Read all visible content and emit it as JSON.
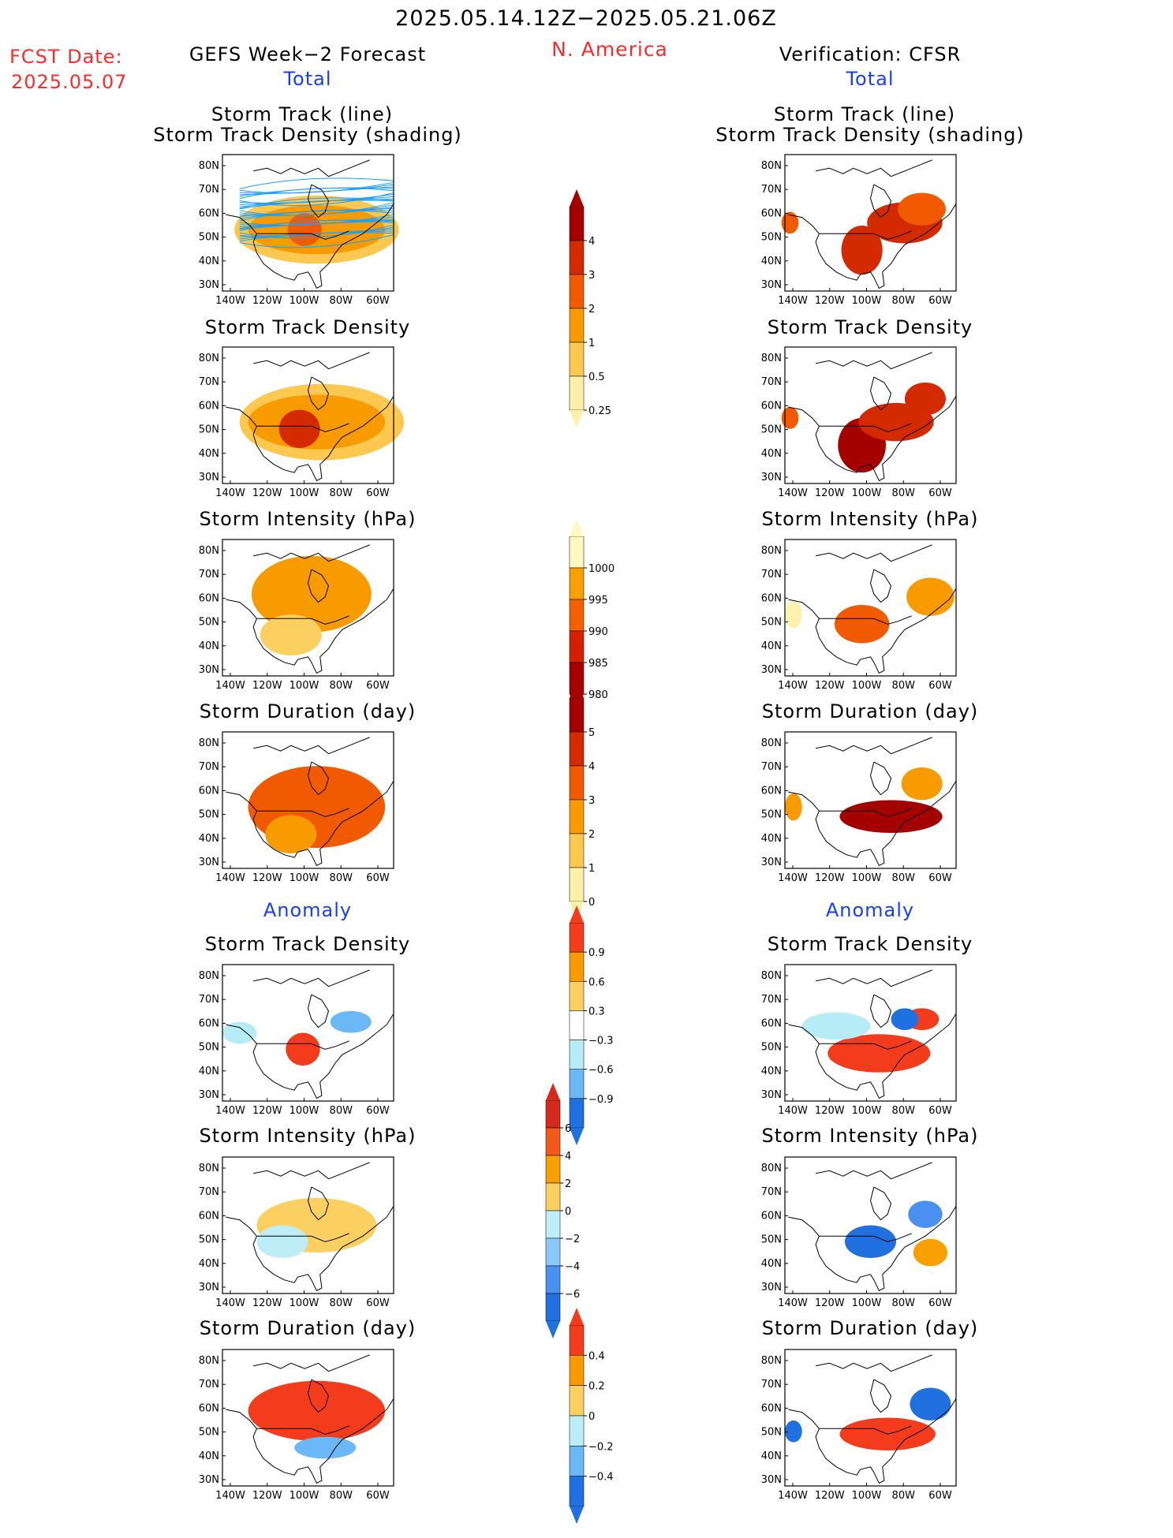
{
  "header": {
    "period": "2025.05.14.12Z−2025.05.21.06Z",
    "region": "N. America",
    "fcst_label": "FCST Date:",
    "fcst_date": "2025.05.07",
    "left_title": "GEFS Week−2 Forecast",
    "right_title": "Verification: CFSR",
    "left_section_total": "Total",
    "right_section_total": "Total",
    "left_section_anomaly": "Anomaly",
    "right_section_anomaly": "Anomaly"
  },
  "panel_titles": {
    "storm_track_line": "Storm Track (line)",
    "storm_track_density_shading": "Storm Track Density (shading)",
    "storm_track_density": "Storm Track Density",
    "storm_intensity": "Storm Intensity (hPa)",
    "storm_duration": "Storm Duration (day)"
  },
  "axes": {
    "lat_labels": [
      "80N",
      "70N",
      "60N",
      "50N",
      "40N",
      "30N"
    ],
    "lon_labels": [
      "140W",
      "120W",
      "100W",
      "80W",
      "60W"
    ]
  },
  "colorbars": [
    {
      "id": "density",
      "labels": [
        "4",
        "3",
        "2",
        "1",
        "0.5",
        "0.25"
      ],
      "colors": [
        "#a50000",
        "#d42a00",
        "#f25a00",
        "#f79b00",
        "#fcc850",
        "#fdf0a8"
      ]
    },
    {
      "id": "intensity",
      "labels": [
        "1000",
        "995",
        "990",
        "985",
        "980"
      ],
      "colors": [
        "#fff8c0",
        "#f7a000",
        "#f26000",
        "#d42000",
        "#a50000"
      ]
    },
    {
      "id": "duration",
      "labels": [
        "5",
        "4",
        "3",
        "2",
        "1",
        "0"
      ],
      "colors": [
        "#a50000",
        "#d42a00",
        "#f25a00",
        "#f79b00",
        "#fcc850",
        "#fdf0a8"
      ]
    },
    {
      "id": "density_anom",
      "labels": [
        "0.9",
        "0.6",
        "0.3",
        "−0.3",
        "−0.6",
        "−0.9"
      ],
      "colors": [
        "#f23c1c",
        "#f79b00",
        "#fcd060",
        "#ffffff",
        "#b5ecf6",
        "#6ab8f5",
        "#2070e0"
      ]
    },
    {
      "id": "intensity_anom",
      "labels": [
        "6",
        "4",
        "2",
        "0",
        "−2",
        "−4",
        "−6"
      ],
      "colors": [
        "#d42a1c",
        "#f25a1c",
        "#f7a000",
        "#fcd060",
        "#bdeef8",
        "#8cc8f8",
        "#4a90f0",
        "#2070e0"
      ]
    },
    {
      "id": "duration_anom",
      "labels": [
        "0.4",
        "0.2",
        "0",
        "−0.2",
        "−0.4"
      ],
      "colors": [
        "#f23c1c",
        "#f79b00",
        "#fcd060",
        "#bdeef8",
        "#6ab8f5",
        "#2070e0"
      ]
    }
  ],
  "colors": {
    "title_red": "#ff2a2a",
    "title_blue": "#1a3cff",
    "track_line": "#1aa0ff"
  }
}
